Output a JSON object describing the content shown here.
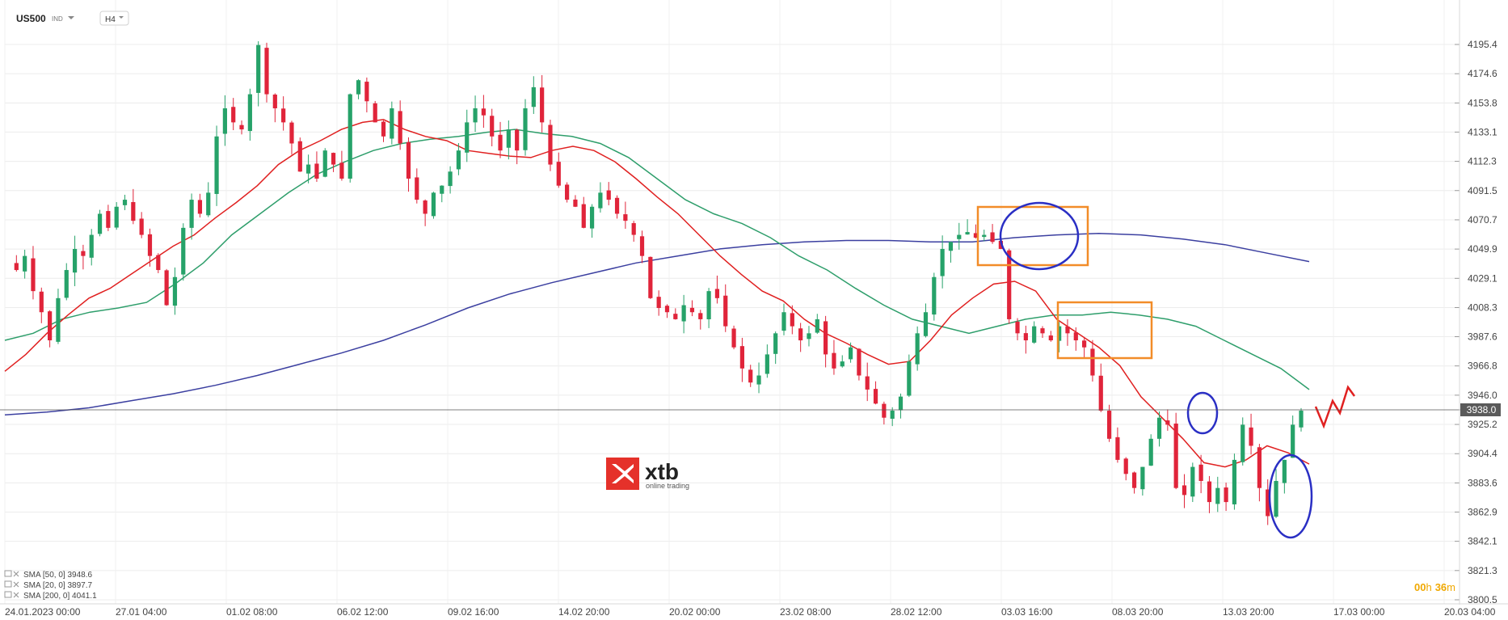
{
  "toolbar": {
    "symbol": "US500",
    "symbol_tag": "IND",
    "interval": "H4"
  },
  "logo": {
    "name": "xtb",
    "tagline": "online trading",
    "color": "#e5312a"
  },
  "countdown": {
    "hours": "00",
    "h_unit": "h",
    "minutes": "36",
    "m_unit": "m",
    "color": "#f0a800"
  },
  "indicators": [
    {
      "label": "SMA [50, 0]",
      "value": "3948.6",
      "color": "#2e9e6b"
    },
    {
      "label": "SMA [20, 0]",
      "value": "3897.7",
      "color": "#e02020"
    },
    {
      "label": "SMA [200, 0]",
      "value": "4041.1",
      "color": "#3b3fa0"
    }
  ],
  "chart_data": {
    "type": "candlestick",
    "title": "",
    "y_ticks": [
      "4195.4",
      "4174.6",
      "4153.8",
      "4133.1",
      "4112.3",
      "4091.5",
      "4070.7",
      "4049.9",
      "4029.1",
      "4008.3",
      "3987.6",
      "3966.8",
      "3946.0",
      "3925.2",
      "3904.4",
      "3883.6",
      "3862.9",
      "3842.1",
      "3821.3",
      "3800.5"
    ],
    "ylim": [
      3800.5,
      4205.0
    ],
    "x_ticks": [
      "24.01.2023  00:00",
      "27.01  04:00",
      "01.02  08:00",
      "06.02  12:00",
      "09.02  16:00",
      "14.02  20:00",
      "20.02  00:00",
      "23.02  08:00",
      "28.02  12:00",
      "03.03  16:00",
      "08.03  20:00",
      "13.03  20:00",
      "17.03  00:00",
      "20.03  04:00"
    ],
    "current_price": "3938.0",
    "grid": true,
    "colors": {
      "up": "#26a269",
      "down": "#e0243a",
      "sma50": "#2e9e6b",
      "sma20": "#e02020",
      "sma200": "#3b3fa0",
      "annotation_box": "#f28c28",
      "annotation_ellipse": "#2a2fc4",
      "forecast": "#e02020"
    },
    "price_path": [
      4040,
      4035,
      4045,
      4020,
      4005,
      3985,
      4015,
      4035,
      4050,
      4045,
      4060,
      4075,
      4065,
      4080,
      4085,
      4070,
      4060,
      4045,
      4035,
      4010,
      4030,
      4065,
      4085,
      4075,
      4090,
      4130,
      4150,
      4140,
      4135,
      4160,
      4195,
      4160,
      4150,
      4140,
      4125,
      4105,
      4110,
      4100,
      4120,
      4110,
      4100,
      4160,
      4170,
      4155,
      4140,
      4130,
      4150,
      4125,
      4100,
      4085,
      4075,
      4090,
      4095,
      4105,
      4120,
      4140,
      4150,
      4145,
      4130,
      4120,
      4135,
      4120,
      4150,
      4165,
      4140,
      4110,
      4095,
      4085,
      4080,
      4065,
      4080,
      4090,
      4085,
      4075,
      4070,
      4060,
      4045,
      4015,
      4008,
      4005,
      4000,
      4010,
      4005,
      4000,
      4020,
      4015,
      3995,
      3980,
      3965,
      3955,
      3960,
      3975,
      3990,
      4005,
      3995,
      3985,
      3990,
      4000,
      3975,
      3965,
      3970,
      3980,
      3960,
      3950,
      3940,
      3930,
      3935,
      3945,
      3970,
      3990,
      4005,
      4030,
      4050,
      4055,
      4060,
      4062,
      4058,
      4060,
      4055,
      4050,
      4000,
      3990,
      3985,
      3995,
      3990,
      3985,
      3995,
      3990,
      3985,
      3980,
      3960,
      3935,
      3915,
      3900,
      3890,
      3880,
      3895,
      3915,
      3930,
      3925,
      3880,
      3875,
      3895,
      3885,
      3870,
      3880,
      3870,
      3900,
      3925,
      3910,
      3880,
      3860,
      3885,
      3900,
      3925,
      3935
    ],
    "sma20": [
      3963,
      3975,
      3990,
      4003,
      4015,
      4022,
      4032,
      4042,
      4052,
      4060,
      4072,
      4083,
      4095,
      4110,
      4120,
      4127,
      4135,
      4140,
      4142,
      4135,
      4130,
      4127,
      4120,
      4118,
      4116,
      4115,
      4120,
      4123,
      4120,
      4112,
      4100,
      4087,
      4075,
      4060,
      4045,
      4032,
      4020,
      4013,
      4000,
      3990,
      3983,
      3975,
      3968,
      3970,
      3985,
      4003,
      4015,
      4025,
      4027,
      4020,
      4000,
      3990,
      3980,
      3967,
      3945,
      3930,
      3915,
      3898,
      3895,
      3900,
      3910,
      3905,
      3897
    ],
    "sma50": [
      3985,
      3990,
      4000,
      4005,
      4008,
      4012,
      4025,
      4040,
      4060,
      4075,
      4090,
      4103,
      4112,
      4120,
      4125,
      4128,
      4130,
      4133,
      4135,
      4132,
      4130,
      4125,
      4115,
      4100,
      4085,
      4075,
      4068,
      4058,
      4045,
      4035,
      4022,
      4010,
      4000,
      3995,
      3990,
      3995,
      4000,
      4003,
      4003,
      4005,
      4003,
      4000,
      3995,
      3985,
      3975,
      3965,
      3950
    ],
    "sma200": [
      3932,
      3934,
      3937,
      3942,
      3947,
      3953,
      3960,
      3968,
      3976,
      3985,
      3996,
      4008,
      4018,
      4026,
      4033,
      4040,
      4045,
      4050,
      4053,
      4055,
      4056,
      4056,
      4055,
      4055,
      4058,
      4060,
      4061,
      4060,
      4057,
      4053,
      4047,
      4041
    ]
  }
}
